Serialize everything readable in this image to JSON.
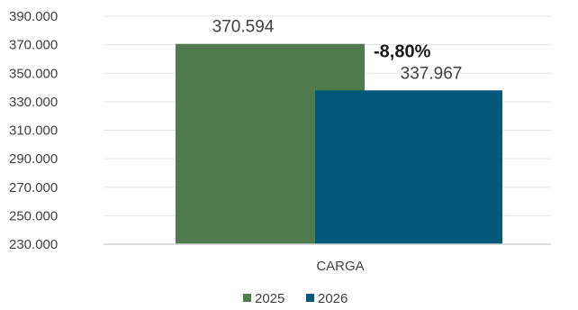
{
  "chart_data": {
    "type": "bar",
    "categories": [
      "CARGA"
    ],
    "series": [
      {
        "name": "2025",
        "values": [
          370594
        ],
        "label": "370.594",
        "color": "#4f7b4f"
      },
      {
        "name": "2026",
        "values": [
          337967
        ],
        "label": "337.967",
        "color": "#04587a"
      }
    ],
    "annotation": "-8,80%",
    "ylim": [
      230000,
      390000
    ],
    "yticks": [
      "230.000",
      "250.000",
      "270.000",
      "290.000",
      "310.000",
      "330.000",
      "350.000",
      "370.000",
      "390.000"
    ],
    "grid": true,
    "legend": "bottom",
    "title": "",
    "xlabel": "",
    "ylabel": ""
  }
}
